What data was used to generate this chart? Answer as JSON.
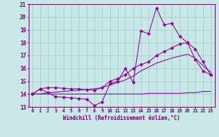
{
  "title": "",
  "xlabel": "Windchill (Refroidissement éolien,°C)",
  "ylabel": "",
  "bg_color": "#c8e8e8",
  "line_color": "#990099",
  "grid_color": "#a0c8c8",
  "text_color": "#660066",
  "xlim": [
    -0.5,
    23.5
  ],
  "ylim": [
    13,
    21
  ],
  "xticks": [
    0,
    1,
    2,
    3,
    4,
    5,
    6,
    7,
    8,
    9,
    10,
    11,
    12,
    13,
    14,
    15,
    16,
    17,
    18,
    19,
    20,
    21,
    22,
    23
  ],
  "yticks": [
    13,
    14,
    15,
    16,
    17,
    18,
    19,
    20,
    21
  ],
  "series": [
    {
      "x": [
        0,
        1,
        2,
        3,
        4,
        5,
        6,
        7,
        8,
        9,
        10,
        11,
        12,
        13,
        14,
        15,
        16,
        17,
        18,
        19,
        20,
        21,
        22,
        23
      ],
      "y": [
        14.0,
        14.4,
        14.1,
        13.8,
        13.75,
        13.7,
        13.65,
        13.6,
        13.1,
        13.4,
        14.8,
        15.0,
        16.0,
        14.9,
        18.9,
        18.7,
        20.7,
        19.4,
        19.5,
        18.5,
        18.0,
        16.7,
        15.8,
        15.5
      ],
      "marker": "D",
      "markersize": 2.5,
      "lw": 0.8
    },
    {
      "x": [
        0,
        1,
        2,
        3,
        4,
        5,
        6,
        7,
        8,
        9,
        10,
        11,
        12,
        13,
        14,
        15,
        16,
        17,
        18,
        19,
        20,
        21,
        22,
        23
      ],
      "y": [
        14.0,
        14.4,
        14.5,
        14.5,
        14.45,
        14.4,
        14.4,
        14.35,
        14.3,
        14.5,
        15.0,
        15.2,
        15.5,
        16.0,
        16.3,
        16.5,
        17.0,
        17.3,
        17.6,
        17.9,
        18.0,
        17.5,
        16.5,
        15.5
      ],
      "marker": "D",
      "markersize": 2.5,
      "lw": 0.8
    },
    {
      "x": [
        0,
        1,
        2,
        3,
        4,
        5,
        6,
        7,
        8,
        9,
        10,
        11,
        12,
        13,
        14,
        15,
        16,
        17,
        18,
        19,
        20,
        21,
        22,
        23
      ],
      "y": [
        14.0,
        14.0,
        14.0,
        14.0,
        14.0,
        14.0,
        14.0,
        14.0,
        14.0,
        14.0,
        14.0,
        14.0,
        14.0,
        14.0,
        14.0,
        14.05,
        14.05,
        14.05,
        14.05,
        14.05,
        14.1,
        14.1,
        14.2,
        14.2
      ],
      "marker": null,
      "markersize": 0,
      "lw": 0.8
    },
    {
      "x": [
        0,
        1,
        2,
        3,
        4,
        5,
        6,
        7,
        8,
        9,
        10,
        11,
        12,
        13,
        14,
        15,
        16,
        17,
        18,
        19,
        20,
        21,
        22,
        23
      ],
      "y": [
        14.0,
        14.0,
        14.1,
        14.15,
        14.2,
        14.25,
        14.3,
        14.35,
        14.4,
        14.5,
        14.7,
        14.9,
        15.1,
        15.4,
        15.8,
        16.1,
        16.4,
        16.6,
        16.8,
        16.95,
        17.1,
        16.8,
        16.2,
        15.7
      ],
      "marker": null,
      "markersize": 0,
      "lw": 0.8
    }
  ]
}
